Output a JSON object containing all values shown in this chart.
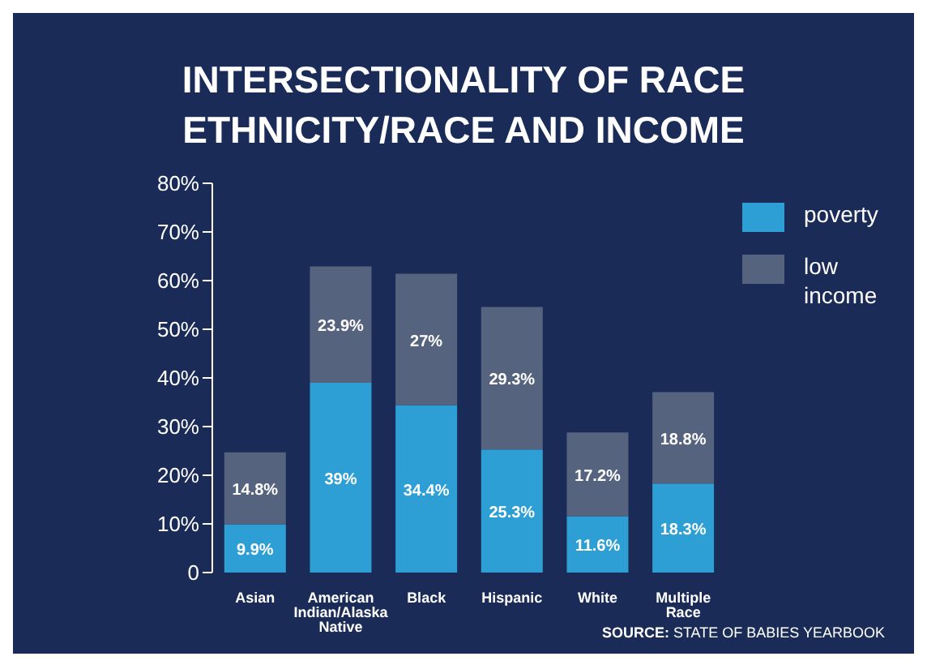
{
  "chart_data": {
    "type": "bar",
    "title": "INTERSECTIONALITY OF RACE ETHNICITY/RACE AND INCOME",
    "categories": [
      "Asian",
      "American Indian/Alaska Native",
      "Black",
      "Hispanic",
      "White",
      "Multiple Race"
    ],
    "stacked": true,
    "series": [
      {
        "name": "poverty",
        "color": "#2e9fd4",
        "values": [
          9.9,
          39,
          34.4,
          25.3,
          11.6,
          18.3
        ],
        "value_labels": [
          "9.9%",
          "39%",
          "34.4%",
          "25.3%",
          "11.6%",
          "18.3%"
        ]
      },
      {
        "name": "low income",
        "color": "#56637f",
        "values": [
          14.8,
          23.9,
          27,
          29.3,
          17.2,
          18.8
        ],
        "value_labels": [
          "14.8%",
          "23.9%",
          "27%",
          "29.3%",
          "17.2%",
          "18.8%"
        ]
      }
    ],
    "ylim": [
      0,
      80
    ],
    "yticks": [
      {
        "value": 0,
        "label": "0"
      },
      {
        "value": 10,
        "label": "10%"
      },
      {
        "value": 20,
        "label": "20%"
      },
      {
        "value": 30,
        "label": "30%"
      },
      {
        "value": 40,
        "label": "40%"
      },
      {
        "value": 50,
        "label": "50%"
      },
      {
        "value": 60,
        "label": "60%"
      },
      {
        "value": 70,
        "label": "70%"
      },
      {
        "value": 80,
        "label": "80%"
      }
    ],
    "grid": false,
    "legend": "top right",
    "annotations": [
      "SOURCE: STATE OF BABIES YEARBOOK"
    ]
  }
}
